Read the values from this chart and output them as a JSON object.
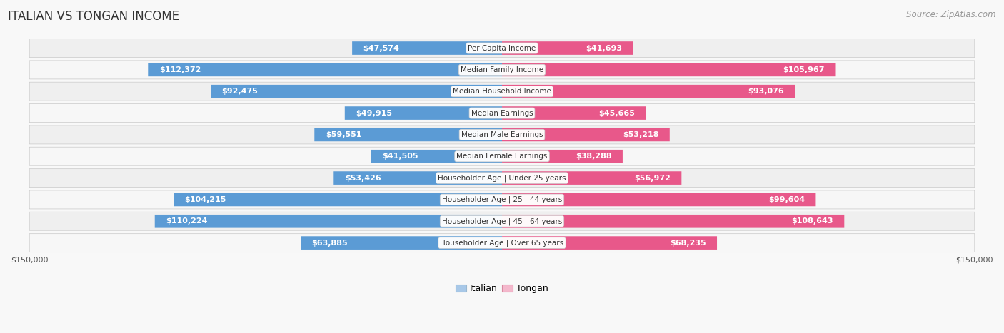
{
  "title": "ITALIAN VS TONGAN INCOME",
  "source": "Source: ZipAtlas.com",
  "categories": [
    "Per Capita Income",
    "Median Family Income",
    "Median Household Income",
    "Median Earnings",
    "Median Male Earnings",
    "Median Female Earnings",
    "Householder Age | Under 25 years",
    "Householder Age | 25 - 44 years",
    "Householder Age | 45 - 64 years",
    "Householder Age | Over 65 years"
  ],
  "italian_values": [
    47574,
    112372,
    92475,
    49915,
    59551,
    41505,
    53426,
    104215,
    110224,
    63885
  ],
  "tongan_values": [
    41693,
    105967,
    93076,
    45665,
    53218,
    38288,
    56972,
    99604,
    108643,
    68235
  ],
  "italian_labels": [
    "$47,574",
    "$112,372",
    "$92,475",
    "$49,915",
    "$59,551",
    "$41,505",
    "$53,426",
    "$104,215",
    "$110,224",
    "$63,885"
  ],
  "tongan_labels": [
    "$41,693",
    "$105,967",
    "$93,076",
    "$45,665",
    "$53,218",
    "$38,288",
    "$56,972",
    "$99,604",
    "$108,643",
    "$68,235"
  ],
  "italian_color_light": "#a8c8e8",
  "italian_color_dark": "#5b9bd5",
  "tongan_color_light": "#f4b8cc",
  "tongan_color_dark": "#e8588a",
  "max_value": 150000,
  "row_bg_even": "#efefef",
  "row_bg_odd": "#f7f7f7",
  "fig_bg": "#f8f8f8",
  "title_fontsize": 12,
  "source_fontsize": 8.5,
  "bar_label_fontsize": 8,
  "cat_label_fontsize": 7.5,
  "axis_label_fontsize": 8,
  "inside_threshold": 35000
}
